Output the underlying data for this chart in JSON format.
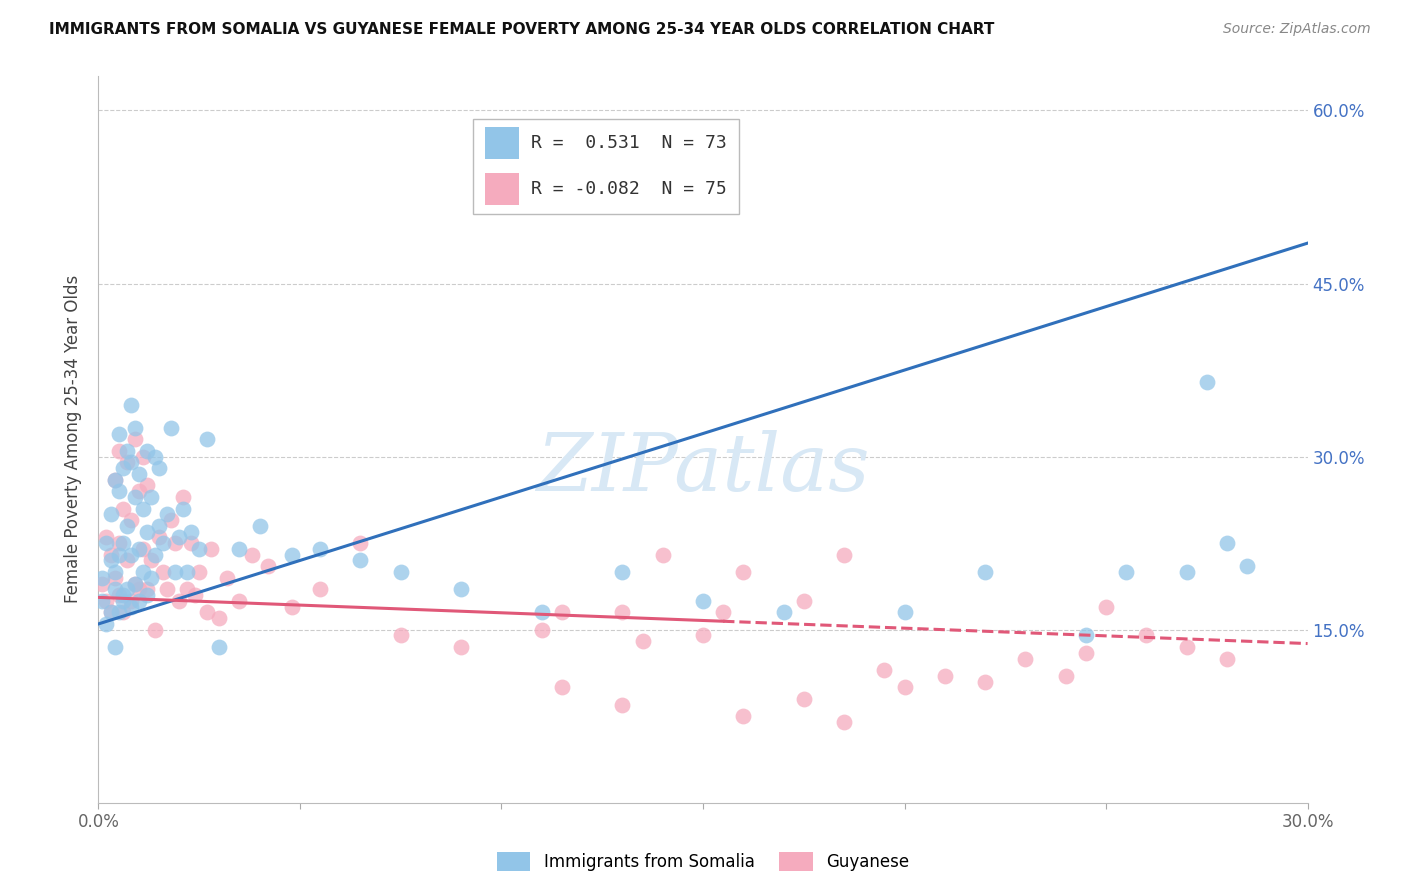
{
  "title": "IMMIGRANTS FROM SOMALIA VS GUYANESE FEMALE POVERTY AMONG 25-34 YEAR OLDS CORRELATION CHART",
  "source": "Source: ZipAtlas.com",
  "ylabel": "Female Poverty Among 25-34 Year Olds",
  "xlim": [
    0.0,
    0.3
  ],
  "ylim": [
    0.0,
    0.63
  ],
  "yticks": [
    0.15,
    0.3,
    0.45,
    0.6
  ],
  "xticks": [
    0.0,
    0.05,
    0.1,
    0.15,
    0.2,
    0.25,
    0.3
  ],
  "xtick_labels": [
    "0.0%",
    "",
    "",
    "",
    "",
    "",
    "30.0%"
  ],
  "right_ytick_labels": [
    "15.0%",
    "30.0%",
    "45.0%",
    "60.0%"
  ],
  "legend_somalia_R": "0.531",
  "legend_somalia_N": "73",
  "legend_guyanese_R": "-0.082",
  "legend_guyanese_N": "75",
  "somalia_color": "#92C5E8",
  "guyanese_color": "#F5ABBE",
  "somalia_line_color": "#3070BB",
  "guyanese_line_color": "#E05878",
  "watermark": "ZIPatlas",
  "watermark_color": "#D8E8F5",
  "background_color": "#FFFFFF",
  "grid_color": "#CCCCCC",
  "somalia_line_x0": 0.0,
  "somalia_line_y0": 0.155,
  "somalia_line_x1": 0.3,
  "somalia_line_y1": 0.485,
  "guyanese_line_x0": 0.0,
  "guyanese_line_y0": 0.178,
  "guyanese_line_x1": 0.3,
  "guyanese_line_y1": 0.138,
  "guyanese_line_solid_end": 0.155,
  "somalia_scatter_x": [
    0.001,
    0.001,
    0.002,
    0.002,
    0.003,
    0.003,
    0.003,
    0.004,
    0.004,
    0.004,
    0.004,
    0.005,
    0.005,
    0.005,
    0.005,
    0.006,
    0.006,
    0.006,
    0.006,
    0.007,
    0.007,
    0.007,
    0.008,
    0.008,
    0.008,
    0.008,
    0.009,
    0.009,
    0.009,
    0.01,
    0.01,
    0.01,
    0.011,
    0.011,
    0.012,
    0.012,
    0.012,
    0.013,
    0.013,
    0.014,
    0.014,
    0.015,
    0.015,
    0.016,
    0.017,
    0.018,
    0.019,
    0.02,
    0.021,
    0.022,
    0.023,
    0.025,
    0.027,
    0.03,
    0.035,
    0.04,
    0.048,
    0.055,
    0.065,
    0.075,
    0.09,
    0.11,
    0.13,
    0.15,
    0.17,
    0.2,
    0.22,
    0.245,
    0.255,
    0.27,
    0.28,
    0.285,
    0.275
  ],
  "somalia_scatter_y": [
    0.175,
    0.195,
    0.155,
    0.225,
    0.165,
    0.21,
    0.25,
    0.135,
    0.185,
    0.2,
    0.28,
    0.165,
    0.215,
    0.27,
    0.32,
    0.18,
    0.225,
    0.29,
    0.175,
    0.185,
    0.24,
    0.305,
    0.17,
    0.215,
    0.295,
    0.345,
    0.19,
    0.265,
    0.325,
    0.175,
    0.22,
    0.285,
    0.2,
    0.255,
    0.18,
    0.235,
    0.305,
    0.195,
    0.265,
    0.215,
    0.3,
    0.24,
    0.29,
    0.225,
    0.25,
    0.325,
    0.2,
    0.23,
    0.255,
    0.2,
    0.235,
    0.22,
    0.315,
    0.135,
    0.22,
    0.24,
    0.215,
    0.22,
    0.21,
    0.2,
    0.185,
    0.165,
    0.2,
    0.175,
    0.165,
    0.165,
    0.2,
    0.145,
    0.2,
    0.2,
    0.225,
    0.205,
    0.365
  ],
  "guyanese_scatter_x": [
    0.001,
    0.002,
    0.002,
    0.003,
    0.003,
    0.004,
    0.004,
    0.005,
    0.005,
    0.005,
    0.006,
    0.006,
    0.007,
    0.007,
    0.008,
    0.008,
    0.009,
    0.009,
    0.01,
    0.01,
    0.011,
    0.011,
    0.012,
    0.012,
    0.013,
    0.014,
    0.015,
    0.016,
    0.017,
    0.018,
    0.019,
    0.02,
    0.021,
    0.022,
    0.023,
    0.024,
    0.025,
    0.027,
    0.028,
    0.03,
    0.032,
    0.035,
    0.038,
    0.042,
    0.048,
    0.055,
    0.065,
    0.075,
    0.09,
    0.11,
    0.13,
    0.15,
    0.175,
    0.14,
    0.16,
    0.185,
    0.115,
    0.135,
    0.25,
    0.26,
    0.27,
    0.28,
    0.155,
    0.175,
    0.2,
    0.22,
    0.24,
    0.195,
    0.21,
    0.23,
    0.245,
    0.115,
    0.13,
    0.16,
    0.185
  ],
  "guyanese_scatter_y": [
    0.19,
    0.175,
    0.23,
    0.165,
    0.215,
    0.195,
    0.28,
    0.18,
    0.225,
    0.305,
    0.255,
    0.165,
    0.21,
    0.295,
    0.175,
    0.245,
    0.19,
    0.315,
    0.185,
    0.27,
    0.22,
    0.3,
    0.185,
    0.275,
    0.21,
    0.15,
    0.23,
    0.2,
    0.185,
    0.245,
    0.225,
    0.175,
    0.265,
    0.185,
    0.225,
    0.18,
    0.2,
    0.165,
    0.22,
    0.16,
    0.195,
    0.175,
    0.215,
    0.205,
    0.17,
    0.185,
    0.225,
    0.145,
    0.135,
    0.15,
    0.165,
    0.145,
    0.09,
    0.215,
    0.2,
    0.215,
    0.165,
    0.14,
    0.17,
    0.145,
    0.135,
    0.125,
    0.165,
    0.175,
    0.1,
    0.105,
    0.11,
    0.115,
    0.11,
    0.125,
    0.13,
    0.1,
    0.085,
    0.075,
    0.07
  ]
}
